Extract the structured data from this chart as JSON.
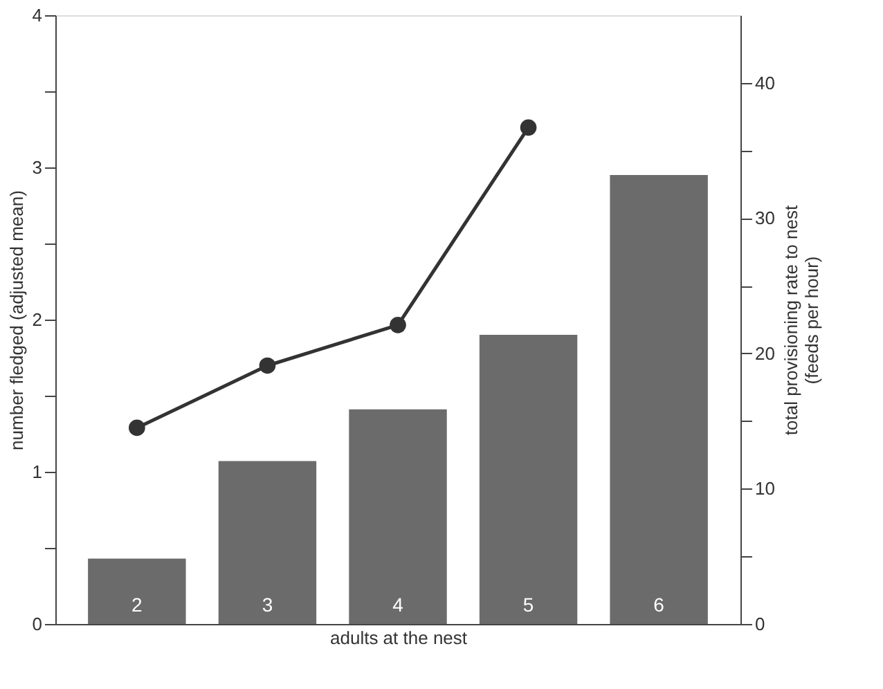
{
  "chart_data": {
    "type": "bar",
    "xlabel": "adults at the nest",
    "ylabel": "number fledged (adjusted mean)",
    "y2label": "total provisioning rate to nest\n(feeds per hour)",
    "categories": [
      "2",
      "3",
      "4",
      "5",
      "6"
    ],
    "series": [
      {
        "color": "#6b6b6b",
        "values": [
          0.43,
          1.07,
          1.41,
          1.9,
          2.95
        ]
      },
      {
        "type": "line",
        "axis": "y2",
        "color": "#333333",
        "marker": "circle",
        "line_style": "solid",
        "values": [
          14.5,
          19.1,
          22.1,
          36.7,
          null
        ]
      }
    ],
    "ylim": [
      0,
      4
    ],
    "yticks": [
      0,
      {
        "value": 0.5,
        "label": null
      },
      1,
      {
        "value": 1.5,
        "label": null
      },
      2,
      {
        "value": 2.5,
        "label": null
      },
      3,
      {
        "value": 3.5,
        "label": null
      },
      4
    ],
    "y2lim": [
      0,
      45
    ],
    "y2ticks": [
      0,
      {
        "value": 5,
        "label": null
      },
      10,
      {
        "value": 15,
        "label": null
      },
      20,
      {
        "value": 25,
        "label": null
      },
      30,
      {
        "value": 35,
        "label": null
      },
      40
    ],
    "grid": false
  }
}
